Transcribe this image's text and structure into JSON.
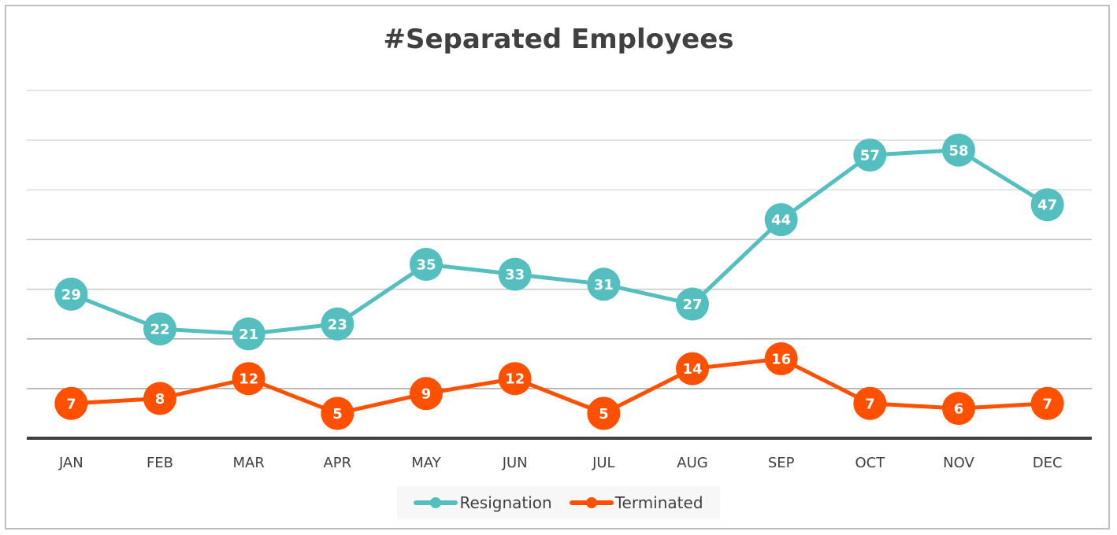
{
  "chart_data": {
    "type": "line",
    "title": "#Separated Employees",
    "xlabel": "",
    "ylabel": "",
    "categories": [
      "JAN",
      "FEB",
      "MAR",
      "APR",
      "MAY",
      "JUN",
      "JUL",
      "AUG",
      "SEP",
      "OCT",
      "NOV",
      "DEC"
    ],
    "ylim": [
      0,
      70
    ],
    "ytick_step": 10,
    "grid": true,
    "legend_position": "bottom",
    "series": [
      {
        "name": "Resignation",
        "color": "#55bfc0",
        "values": [
          29,
          22,
          21,
          23,
          35,
          33,
          31,
          27,
          44,
          57,
          58,
          47
        ]
      },
      {
        "name": "Terminated",
        "color": "#ff5000",
        "values": [
          7,
          8,
          12,
          5,
          9,
          12,
          5,
          14,
          16,
          7,
          6,
          7
        ]
      }
    ]
  }
}
